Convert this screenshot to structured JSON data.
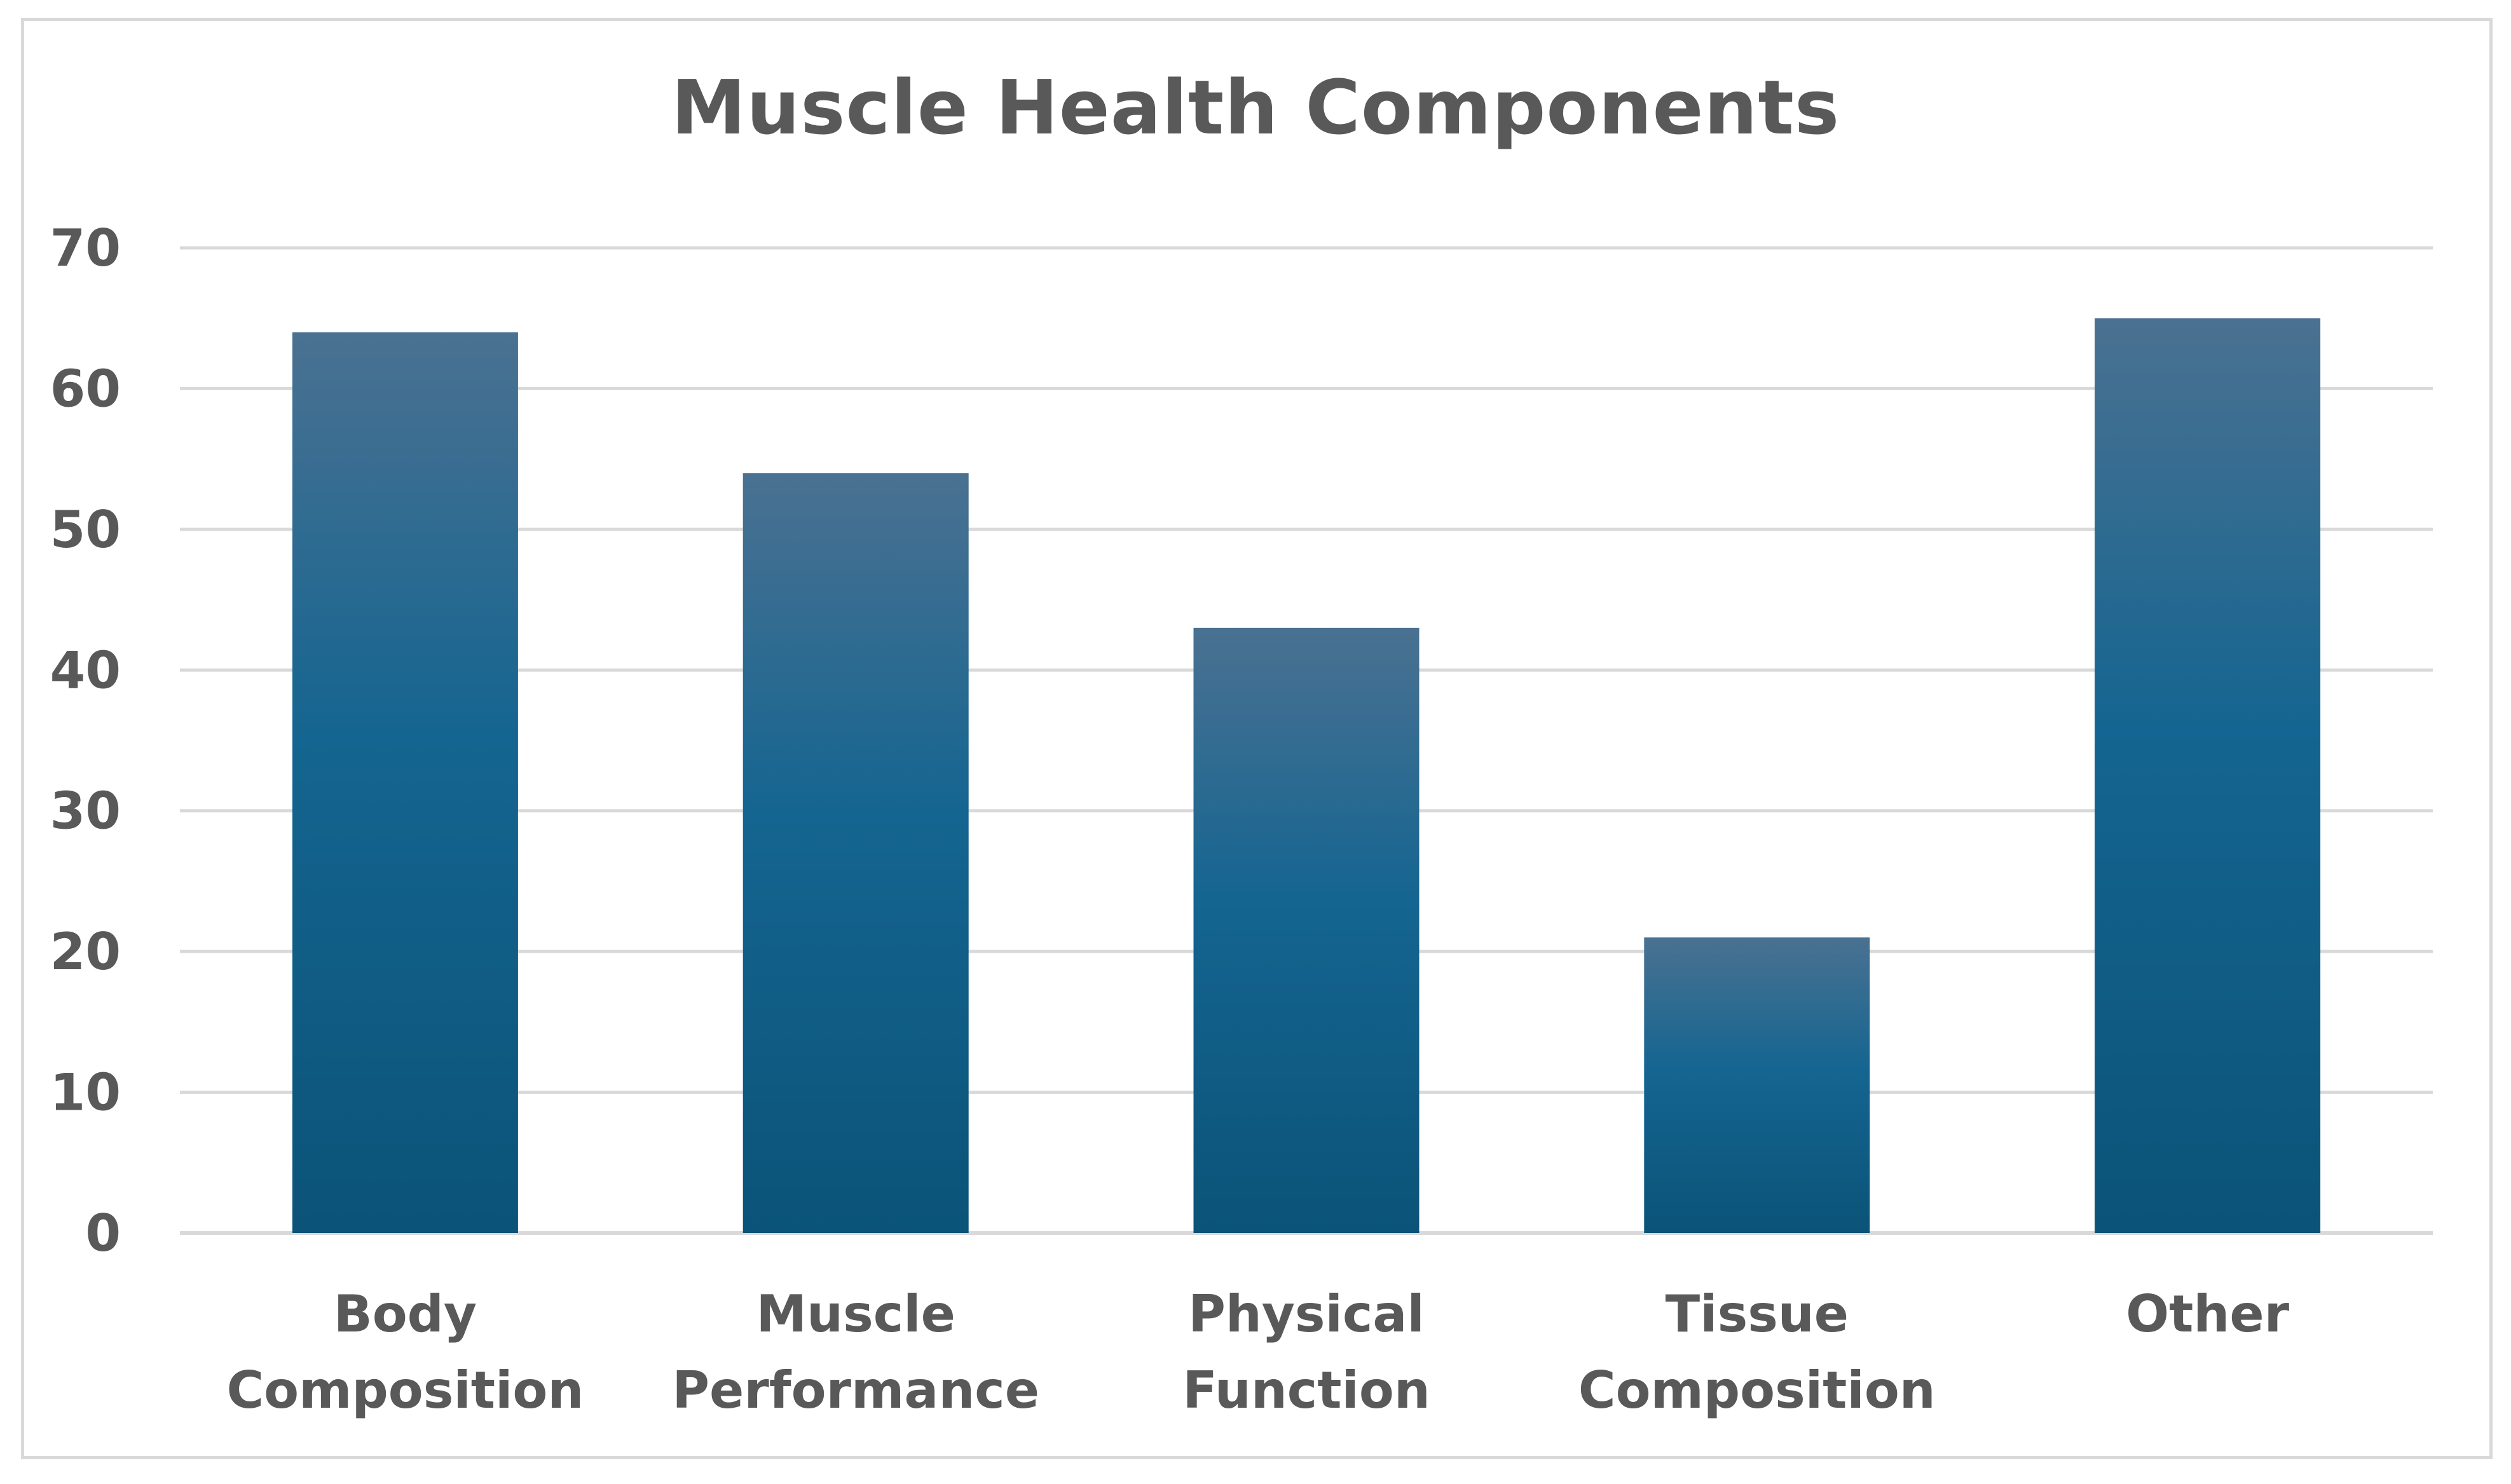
{
  "chart_data": {
    "type": "bar",
    "title": "Muscle Health Components",
    "categories": [
      [
        "Body",
        "Composition"
      ],
      [
        "Muscle",
        "Performance"
      ],
      [
        "Physical",
        "Function"
      ],
      [
        "Tissue",
        "Composition"
      ],
      [
        "Other"
      ]
    ],
    "values": [
      64,
      54,
      43,
      21,
      65
    ],
    "xlabel": "",
    "ylabel": "",
    "ylim": [
      0,
      70
    ],
    "yticks": [
      "0",
      "10",
      "20",
      "30",
      "40",
      "50",
      "60",
      "70"
    ],
    "grid": true,
    "legend": "none",
    "colors": {
      "bar_top": "#4a7191",
      "bar_bottom": "#0b5378",
      "grid": "#d9d9d9",
      "text": "#595959"
    }
  }
}
